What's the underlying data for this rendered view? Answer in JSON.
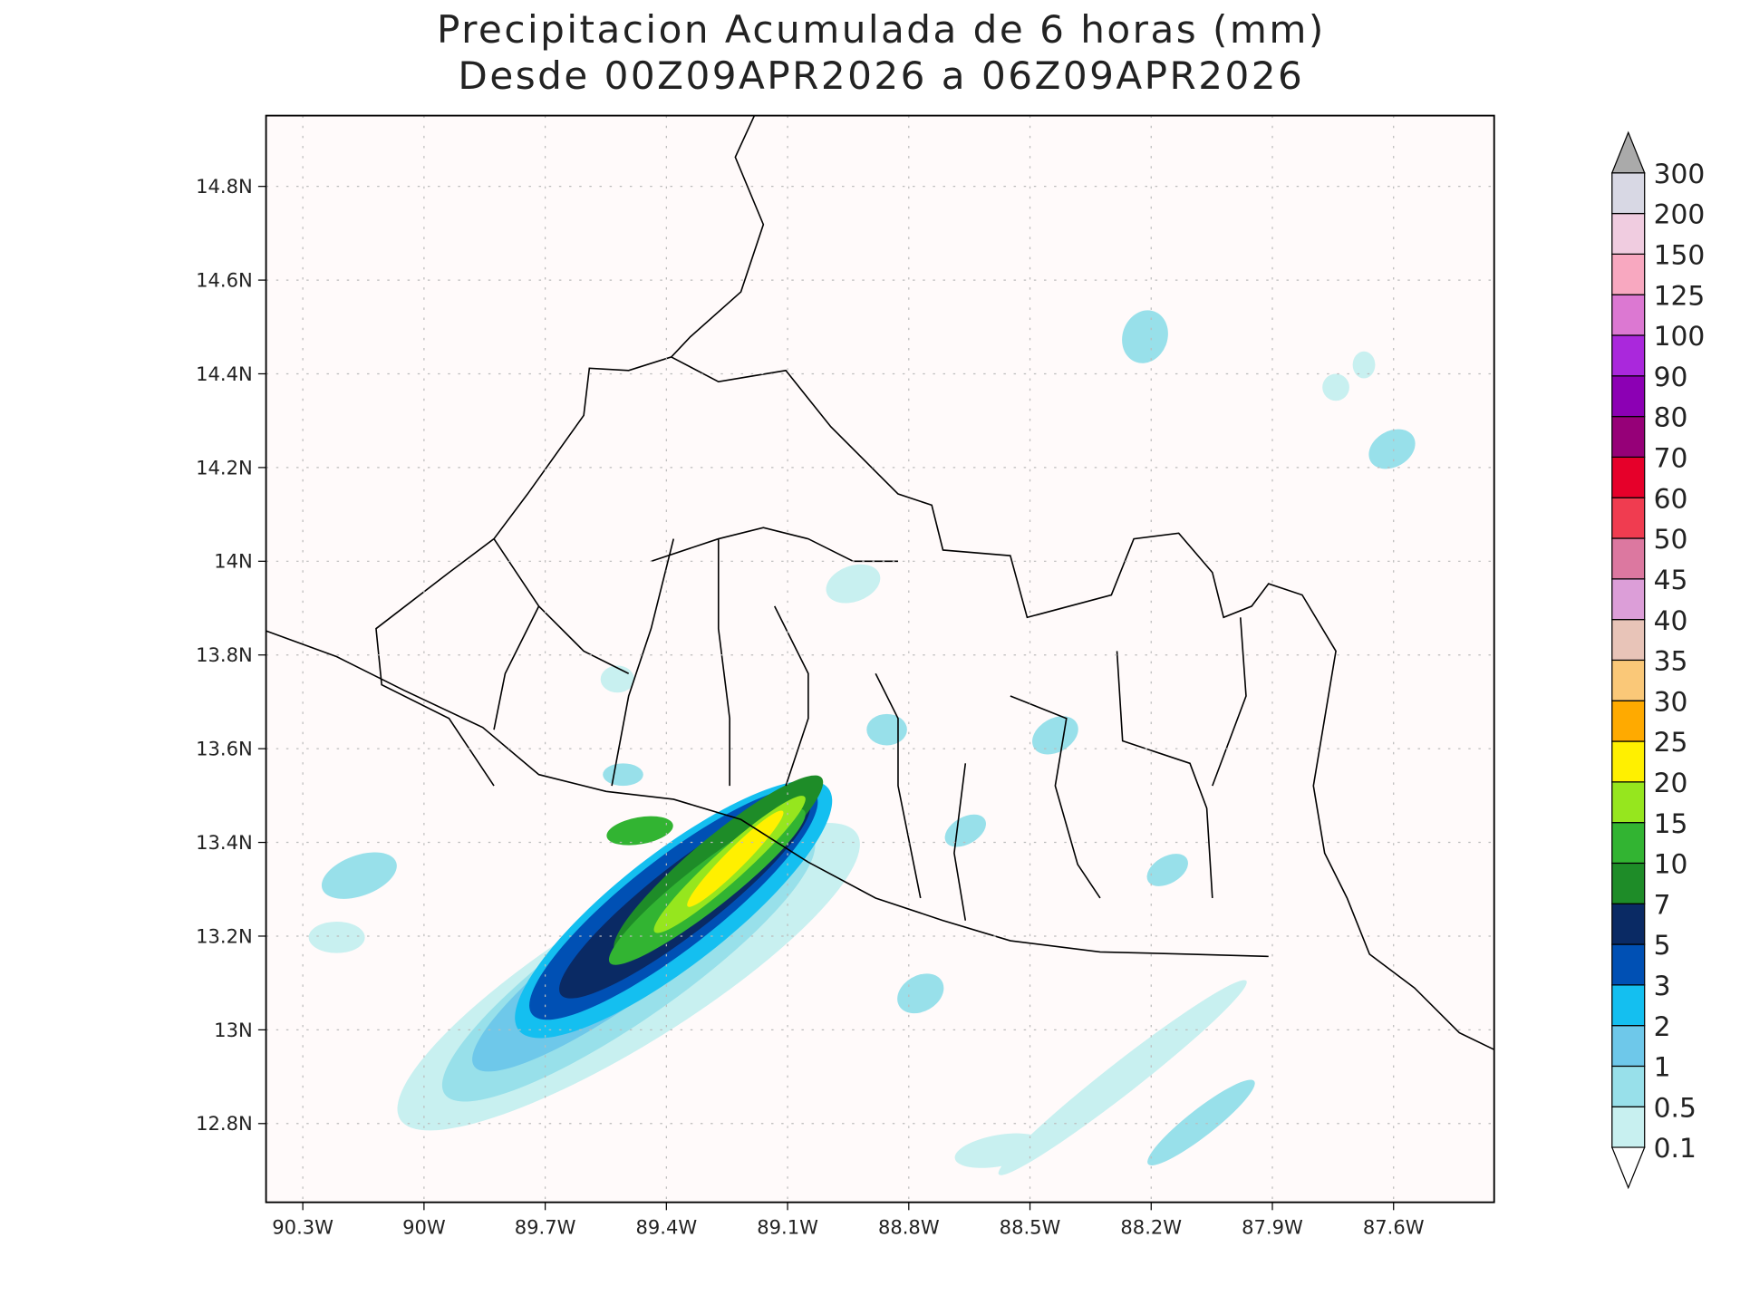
{
  "title": [
    "Precipitacion Acumulada de 6 horas (mm)",
    "Desde 00Z09APR2026 a 06Z09APR2026"
  ],
  "map": {
    "xlim": [
      -90.391,
      -87.351
    ],
    "ylim": [
      12.632,
      14.951
    ],
    "grid": true,
    "xticks": [
      {
        "value": -90.3,
        "label": "90.3W"
      },
      {
        "value": -90.0,
        "label": "90W"
      },
      {
        "value": -89.7,
        "label": "89.7W"
      },
      {
        "value": -89.4,
        "label": "89.4W"
      },
      {
        "value": -89.1,
        "label": "89.1W"
      },
      {
        "value": -88.8,
        "label": "88.8W"
      },
      {
        "value": -88.5,
        "label": "88.5W"
      },
      {
        "value": -88.2,
        "label": "88.2W"
      },
      {
        "value": -87.9,
        "label": "87.9W"
      },
      {
        "value": -87.6,
        "label": "87.6W"
      }
    ],
    "yticks": [
      {
        "value": 14.8,
        "label": "14.8N"
      },
      {
        "value": 14.6,
        "label": "14.6N"
      },
      {
        "value": 14.4,
        "label": "14.4N"
      },
      {
        "value": 14.2,
        "label": "14.2N"
      },
      {
        "value": 14.0,
        "label": "14N"
      },
      {
        "value": 13.8,
        "label": "13.8N"
      },
      {
        "value": 13.6,
        "label": "13.6N"
      },
      {
        "value": 13.4,
        "label": "13.4N"
      },
      {
        "value": 13.2,
        "label": "13.2N"
      },
      {
        "value": 13.0,
        "label": "13N"
      },
      {
        "value": 12.8,
        "label": "12.8N"
      }
    ]
  },
  "colorbar": {
    "levels": [
      0.1,
      0.5,
      1,
      2,
      3,
      5,
      7,
      10,
      15,
      20,
      25,
      30,
      35,
      40,
      45,
      50,
      60,
      70,
      80,
      90,
      100,
      125,
      150,
      200,
      300
    ],
    "colors": [
      "#c8f0f0",
      "#98e0ea",
      "#6ec8ea",
      "#14bff0",
      "#0050b4",
      "#0a2a64",
      "#1e8c28",
      "#32b432",
      "#96e61e",
      "#fff000",
      "#ffaa00",
      "#fac878",
      "#e8c4b8",
      "#dc9ed8",
      "#dc78a0",
      "#f03c50",
      "#e6002a",
      "#960078",
      "#8c00b4",
      "#aa28dc",
      "#dc78d2",
      "#f8a8c0",
      "#f0cce0",
      "#d8d8e4"
    ],
    "over_color": "#aaaaaa",
    "under_color": "#ffffff"
  }
}
